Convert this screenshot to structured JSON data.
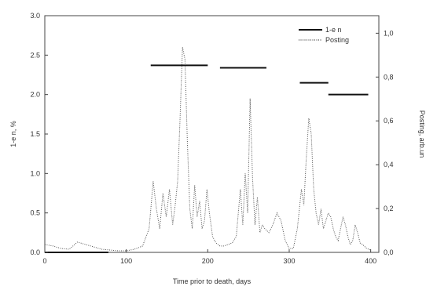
{
  "chart_data": {
    "type": "line",
    "xlabel": "Time prior to death, days",
    "ylabel_left": "1-e n, %",
    "ylabel_right": "Posting, arb.un",
    "xlim": [
      0,
      410
    ],
    "ylim_left": [
      0,
      3.0
    ],
    "ylim_right": [
      0,
      1.08
    ],
    "x_ticks": [
      0,
      100,
      200,
      300,
      400
    ],
    "y_ticks_left": [
      0.0,
      0.5,
      1.0,
      1.5,
      2.0,
      2.5,
      3.0
    ],
    "y_ticks_right": [
      0.0,
      0.2,
      0.4,
      0.6,
      0.8,
      1.0
    ],
    "x_tick_labels": [
      "0",
      "100",
      "200",
      "300",
      "400"
    ],
    "y_tick_labels_left": [
      "0.0",
      "0.5",
      "1.0",
      "1.5",
      "2.0",
      "2.5",
      "3.0"
    ],
    "y_tick_labels_right": [
      "0,0",
      "0,2",
      "0,4",
      "0,6",
      "0,8",
      "1,0"
    ],
    "grid": false,
    "legend_position": "top-right",
    "series": [
      {
        "name": "1-e n",
        "style": "solid",
        "segments": [
          {
            "x": [
              0,
              78
            ],
            "y": [
              0.0,
              0.0
            ]
          },
          {
            "x": [
              130,
              200
            ],
            "y": [
              2.37,
              2.37
            ]
          },
          {
            "x": [
              215,
              272
            ],
            "y": [
              2.34,
              2.34
            ]
          },
          {
            "x": [
              313,
              348
            ],
            "y": [
              2.15,
              2.15
            ]
          },
          {
            "x": [
              348,
              397
            ],
            "y": [
              2.0,
              2.0
            ]
          }
        ]
      },
      {
        "name": "Posting",
        "style": "dotted",
        "x": [
          0,
          10,
          20,
          30,
          40,
          50,
          60,
          70,
          80,
          90,
          100,
          110,
          120,
          128,
          133,
          137,
          141,
          145,
          149,
          153,
          157,
          160,
          163,
          166,
          169,
          172,
          175,
          178,
          181,
          184,
          187,
          190,
          193,
          196,
          199,
          202,
          206,
          210,
          215,
          220,
          225,
          230,
          235,
          240,
          243,
          246,
          249,
          252,
          255,
          258,
          261,
          264,
          267,
          270,
          275,
          280,
          285,
          290,
          295,
          300,
          305,
          310,
          315,
          318,
          321,
          324,
          327,
          330,
          333,
          336,
          339,
          342,
          345,
          348,
          351,
          354,
          357,
          360,
          363,
          366,
          369,
          372,
          375,
          378,
          381,
          384,
          387,
          390,
          395,
          400
        ],
        "y": [
          0.1,
          0.08,
          0.05,
          0.04,
          0.13,
          0.1,
          0.07,
          0.04,
          0.03,
          0.02,
          0.02,
          0.04,
          0.08,
          0.3,
          0.9,
          0.55,
          0.3,
          0.75,
          0.45,
          0.8,
          0.35,
          0.6,
          0.9,
          1.7,
          2.6,
          2.45,
          1.4,
          0.55,
          0.3,
          0.85,
          0.45,
          0.65,
          0.3,
          0.4,
          0.8,
          0.5,
          0.2,
          0.12,
          0.08,
          0.08,
          0.1,
          0.12,
          0.2,
          0.8,
          0.35,
          1.0,
          0.5,
          1.95,
          0.95,
          0.35,
          0.7,
          0.25,
          0.35,
          0.3,
          0.25,
          0.35,
          0.5,
          0.4,
          0.15,
          0.05,
          0.05,
          0.3,
          0.8,
          0.6,
          1.2,
          1.7,
          1.5,
          0.8,
          0.5,
          0.35,
          0.55,
          0.3,
          0.4,
          0.5,
          0.45,
          0.3,
          0.2,
          0.15,
          0.3,
          0.45,
          0.35,
          0.2,
          0.1,
          0.15,
          0.35,
          0.25,
          0.12,
          0.1,
          0.05,
          0.03
        ]
      }
    ]
  }
}
